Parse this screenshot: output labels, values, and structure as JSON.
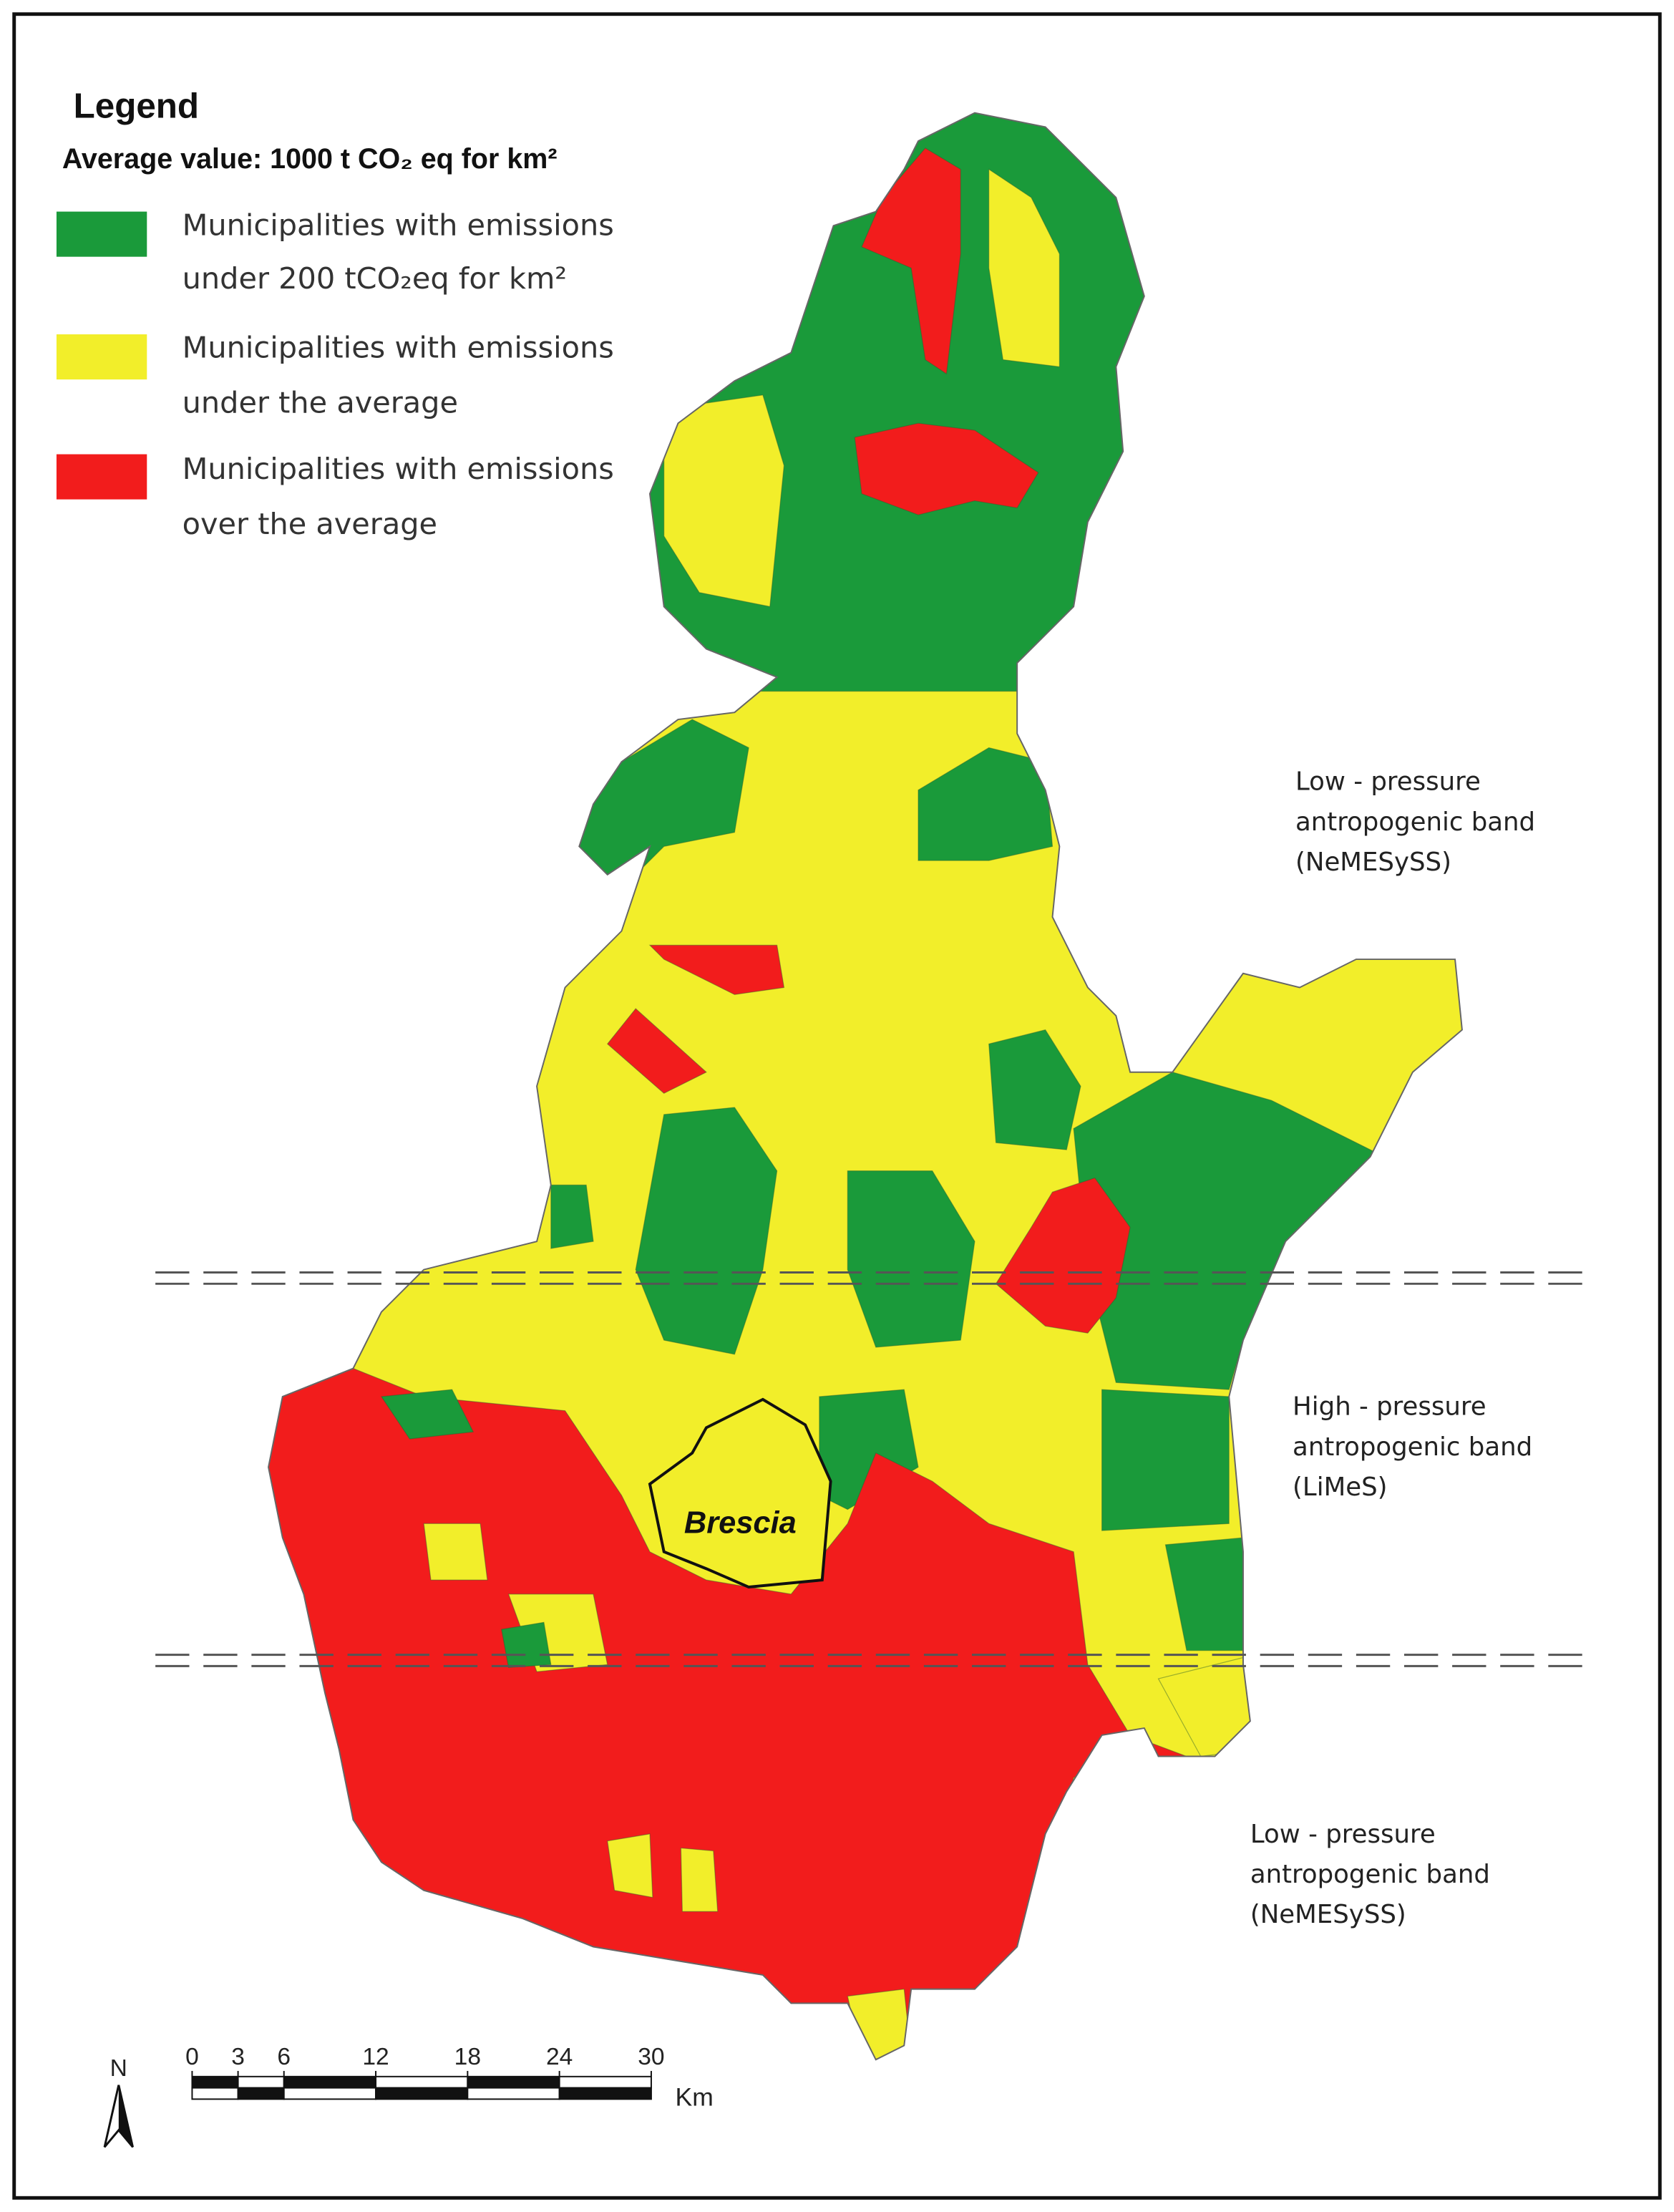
{
  "legend": {
    "title": "Legend",
    "subtitle": "Average value: 1000 t CO₂  eq for km²",
    "items": [
      {
        "color": "#1a9a3a",
        "lines": [
          "Municipalities with emissions",
          "under 200 tCO₂eq for km²"
        ]
      },
      {
        "color": "#f2ee2a",
        "lines": [
          "Municipalities with emissions",
          "under the average"
        ]
      },
      {
        "color": "#f21c1c",
        "lines": [
          "Municipalities with emissions",
          "over the average"
        ]
      }
    ]
  },
  "bands": [
    {
      "lines": [
        "Low - pressure",
        "antropogenic band",
        "(NeMESySS)"
      ]
    },
    {
      "lines": [
        "High - pressure",
        "antropogenic band",
        "(LiMeS)"
      ]
    },
    {
      "lines": [
        "Low - pressure",
        "antropogenic band",
        "(NeMESySS)"
      ]
    }
  ],
  "city_label": "Brescia",
  "north_label": "N",
  "scale_bar": {
    "ticks": [
      0,
      3,
      6,
      12,
      18,
      24,
      30
    ],
    "unit": "Km"
  }
}
